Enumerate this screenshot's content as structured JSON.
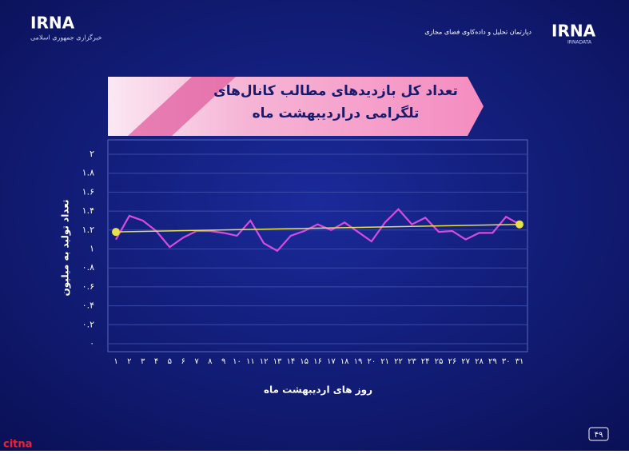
{
  "header": {
    "left_logo": "IRNA",
    "left_subtitle": "خبرگزاری جمهوری اسلامی",
    "right_logo": "IRNA",
    "right_logo_sub": "IRNADATA",
    "right_subtitle": "دپارتمان تحلیل و داده‌کاوی فضای مجازی"
  },
  "chart_data": {
    "type": "line",
    "title": "تعداد کل بازدیدهای مطالب کانال‌های تلگرامی دراردیبهشت ماه",
    "y_label": "تعداد تولید به میلیون",
    "x_label": "روز های اردیبهشت ماه",
    "categories": [
      "۱",
      "۲",
      "۳",
      "۴",
      "۵",
      "۶",
      "۷",
      "۸",
      "۹",
      "۱۰",
      "۱۱",
      "۱۲",
      "۱۳",
      "۱۴",
      "۱۵",
      "۱۶",
      "۱۷",
      "۱۸",
      "۱۹",
      "۲۰",
      "۲۱",
      "۲۲",
      "۲۳",
      "۲۴",
      "۲۵",
      "۲۶",
      "۲۷",
      "۲۸",
      "۲۹",
      "۳۰",
      "۳۱"
    ],
    "values": [
      1.1,
      1.35,
      1.3,
      1.19,
      1.02,
      1.12,
      1.19,
      1.19,
      1.17,
      1.14,
      1.3,
      1.06,
      0.98,
      1.14,
      1.19,
      1.26,
      1.2,
      1.28,
      1.18,
      1.08,
      1.28,
      1.42,
      1.26,
      1.33,
      1.18,
      1.19,
      1.1,
      1.17,
      1.17,
      1.34,
      1.26
    ],
    "color": "#d64be0",
    "trendline": {
      "color": "#e8e04a",
      "values": [
        1.18,
        1.26
      ]
    },
    "ylim": [
      0,
      2
    ],
    "yticks": [
      {
        "value": 0,
        "label": "۰"
      },
      {
        "value": 0.2,
        "label": "۰.۲"
      },
      {
        "value": 0.4,
        "label": "۰.۴"
      },
      {
        "value": 0.6,
        "label": "۰.۶"
      },
      {
        "value": 0.8,
        "label": "۰.۸"
      },
      {
        "value": 1,
        "label": "۱"
      },
      {
        "value": 1.2,
        "label": "۱.۲"
      },
      {
        "value": 1.4,
        "label": "۱.۴"
      },
      {
        "value": 1.6,
        "label": "۱.۶"
      },
      {
        "value": 1.8,
        "label": "۱.۸"
      },
      {
        "value": 2,
        "label": "۲"
      }
    ],
    "grid": true
  },
  "footer": {
    "page": "۴۹",
    "source": "citna"
  }
}
